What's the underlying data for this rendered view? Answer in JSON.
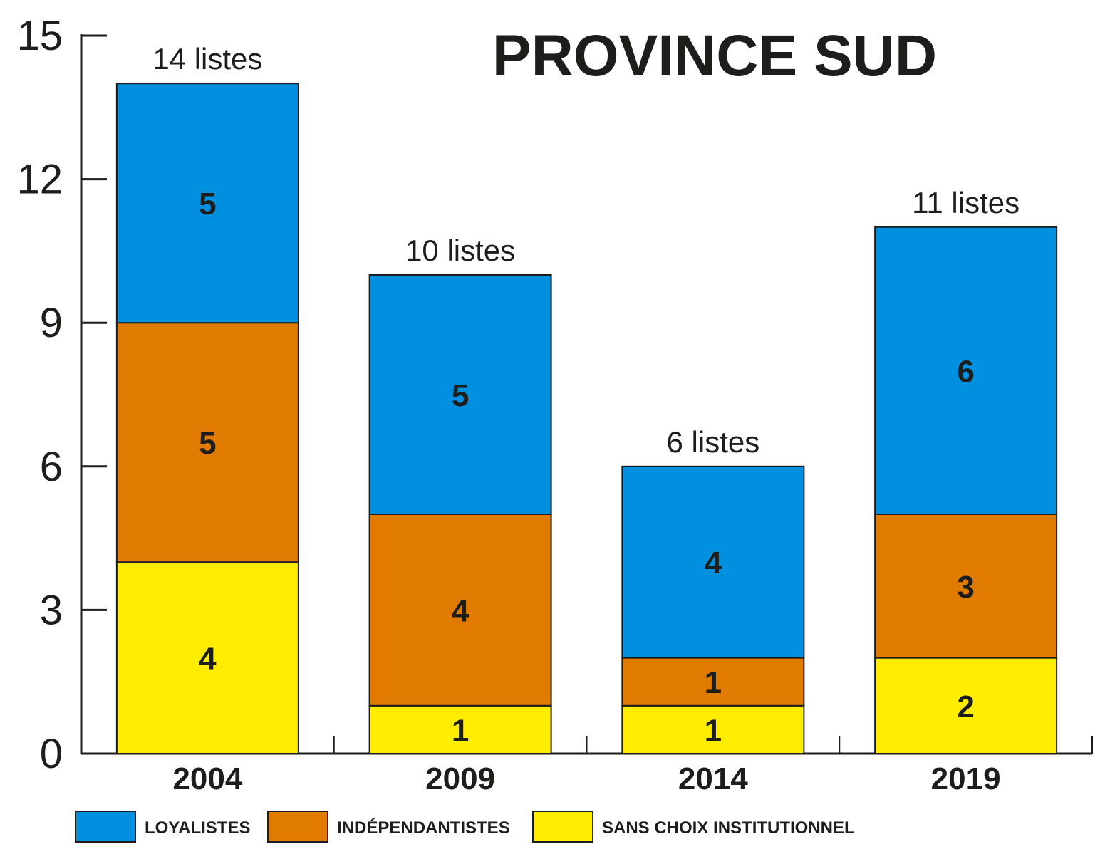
{
  "chart_data": {
    "type": "bar",
    "stacked": true,
    "title": "PROVINCE SUD",
    "xlabel": "",
    "ylabel": "",
    "ylim": [
      0,
      15
    ],
    "yticks": [
      0,
      3,
      6,
      9,
      12,
      15
    ],
    "grid": false,
    "legend_position": "bottom",
    "categories": [
      "2004",
      "2009",
      "2014",
      "2019"
    ],
    "totals_labels": [
      "14 listes",
      "10 listes",
      "6 listes",
      "11 listes"
    ],
    "series": [
      {
        "name": "SANS CHOIX INSTITUTIONNEL",
        "color": "#ffed00",
        "values": [
          4,
          1,
          1,
          2
        ]
      },
      {
        "name": "INDÉPENDANTISTES",
        "color": "#e07b00",
        "values": [
          5,
          4,
          1,
          3
        ]
      },
      {
        "name": "LOYALISTES",
        "color": "#0090df",
        "values": [
          5,
          5,
          4,
          6
        ]
      }
    ],
    "legend_order": [
      "LOYALISTES",
      "INDÉPENDANTISTES",
      "SANS CHOIX INSTITUTIONNEL"
    ]
  }
}
